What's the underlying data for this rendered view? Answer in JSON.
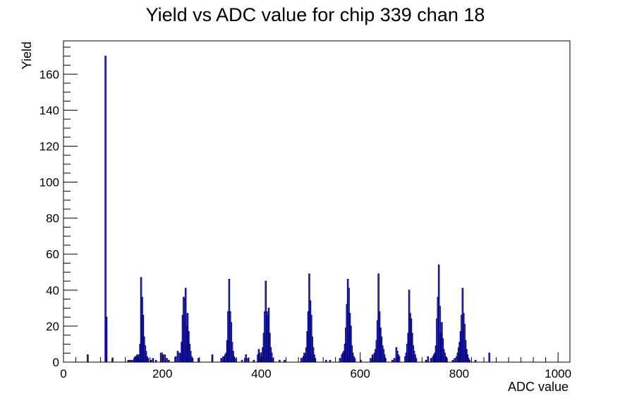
{
  "chart_data": {
    "type": "histogram",
    "title": "Yield vs ADC value for chip 339 chan 18",
    "xlabel": "ADC value",
    "ylabel": "Yield",
    "xlim": [
      0,
      1024
    ],
    "ylim": [
      0,
      178.5
    ],
    "x_ticks": [
      0,
      200,
      400,
      600,
      800,
      1000
    ],
    "y_ticks": [
      0,
      20,
      40,
      60,
      80,
      100,
      120,
      140,
      160
    ],
    "bin_width": 2,
    "line_color": "#00008b",
    "grid": false,
    "legend": "none",
    "bins": [
      [
        48,
        4
      ],
      [
        84,
        170
      ],
      [
        86,
        25
      ],
      [
        98,
        2
      ],
      [
        130,
        1
      ],
      [
        134,
        1
      ],
      [
        138,
        1
      ],
      [
        142,
        2
      ],
      [
        144,
        3
      ],
      [
        146,
        3
      ],
      [
        148,
        4
      ],
      [
        150,
        3
      ],
      [
        152,
        4
      ],
      [
        154,
        10
      ],
      [
        156,
        47
      ],
      [
        158,
        36
      ],
      [
        160,
        26
      ],
      [
        162,
        14
      ],
      [
        164,
        9
      ],
      [
        166,
        6
      ],
      [
        168,
        3
      ],
      [
        170,
        2
      ],
      [
        176,
        1
      ],
      [
        180,
        2
      ],
      [
        186,
        1
      ],
      [
        196,
        5
      ],
      [
        200,
        4
      ],
      [
        204,
        4
      ],
      [
        208,
        2
      ],
      [
        212,
        1
      ],
      [
        226,
        3
      ],
      [
        230,
        6
      ],
      [
        234,
        5
      ],
      [
        236,
        4
      ],
      [
        238,
        11
      ],
      [
        240,
        26
      ],
      [
        242,
        36
      ],
      [
        244,
        35
      ],
      [
        246,
        41
      ],
      [
        248,
        20
      ],
      [
        250,
        27
      ],
      [
        252,
        17
      ],
      [
        254,
        10
      ],
      [
        256,
        6
      ],
      [
        258,
        3
      ],
      [
        260,
        2
      ],
      [
        272,
        2
      ],
      [
        300,
        4
      ],
      [
        318,
        2
      ],
      [
        322,
        3
      ],
      [
        326,
        4
      ],
      [
        328,
        5
      ],
      [
        330,
        12
      ],
      [
        332,
        28
      ],
      [
        334,
        46
      ],
      [
        336,
        28
      ],
      [
        338,
        22
      ],
      [
        340,
        11
      ],
      [
        342,
        6
      ],
      [
        344,
        3
      ],
      [
        346,
        2
      ],
      [
        360,
        1
      ],
      [
        366,
        2
      ],
      [
        368,
        4
      ],
      [
        372,
        2
      ],
      [
        384,
        1
      ],
      [
        392,
        4
      ],
      [
        394,
        7
      ],
      [
        396,
        5
      ],
      [
        398,
        2
      ],
      [
        400,
        3
      ],
      [
        402,
        8
      ],
      [
        404,
        16
      ],
      [
        406,
        28
      ],
      [
        408,
        45
      ],
      [
        410,
        28
      ],
      [
        412,
        26
      ],
      [
        414,
        30
      ],
      [
        416,
        16
      ],
      [
        418,
        8
      ],
      [
        420,
        5
      ],
      [
        422,
        2
      ],
      [
        436,
        1
      ],
      [
        446,
        1
      ],
      [
        480,
        2
      ],
      [
        484,
        3
      ],
      [
        486,
        5
      ],
      [
        488,
        4
      ],
      [
        490,
        8
      ],
      [
        492,
        17
      ],
      [
        494,
        28
      ],
      [
        496,
        49
      ],
      [
        498,
        34
      ],
      [
        500,
        26
      ],
      [
        502,
        14
      ],
      [
        504,
        8
      ],
      [
        506,
        4
      ],
      [
        508,
        2
      ],
      [
        530,
        1
      ],
      [
        538,
        1
      ],
      [
        558,
        2
      ],
      [
        562,
        4
      ],
      [
        564,
        5
      ],
      [
        566,
        6
      ],
      [
        568,
        10
      ],
      [
        570,
        19
      ],
      [
        572,
        32
      ],
      [
        574,
        46
      ],
      [
        576,
        41
      ],
      [
        578,
        27
      ],
      [
        580,
        20
      ],
      [
        582,
        9
      ],
      [
        584,
        5
      ],
      [
        586,
        3
      ],
      [
        588,
        2
      ],
      [
        600,
        1
      ],
      [
        620,
        2
      ],
      [
        624,
        4
      ],
      [
        628,
        5
      ],
      [
        630,
        7
      ],
      [
        632,
        12
      ],
      [
        634,
        23
      ],
      [
        636,
        49
      ],
      [
        638,
        28
      ],
      [
        640,
        19
      ],
      [
        642,
        14
      ],
      [
        644,
        9
      ],
      [
        646,
        7
      ],
      [
        648,
        4
      ],
      [
        650,
        2
      ],
      [
        664,
        1
      ],
      [
        668,
        2
      ],
      [
        672,
        8
      ],
      [
        674,
        6
      ],
      [
        676,
        4
      ],
      [
        678,
        3
      ],
      [
        690,
        3
      ],
      [
        692,
        5
      ],
      [
        694,
        10
      ],
      [
        696,
        16
      ],
      [
        698,
        40
      ],
      [
        700,
        27
      ],
      [
        702,
        24
      ],
      [
        704,
        16
      ],
      [
        706,
        9
      ],
      [
        708,
        6
      ],
      [
        710,
        4
      ],
      [
        712,
        2
      ],
      [
        732,
        1
      ],
      [
        736,
        3
      ],
      [
        742,
        2
      ],
      [
        746,
        3
      ],
      [
        748,
        4
      ],
      [
        750,
        5
      ],
      [
        752,
        9
      ],
      [
        754,
        24
      ],
      [
        756,
        36
      ],
      [
        758,
        54
      ],
      [
        760,
        31
      ],
      [
        762,
        16
      ],
      [
        764,
        22
      ],
      [
        766,
        13
      ],
      [
        768,
        7
      ],
      [
        770,
        5
      ],
      [
        772,
        3
      ],
      [
        774,
        2
      ],
      [
        786,
        1
      ],
      [
        790,
        2
      ],
      [
        794,
        3
      ],
      [
        796,
        5
      ],
      [
        798,
        8
      ],
      [
        800,
        11
      ],
      [
        802,
        17
      ],
      [
        804,
        26
      ],
      [
        806,
        41
      ],
      [
        808,
        27
      ],
      [
        810,
        21
      ],
      [
        812,
        12
      ],
      [
        814,
        7
      ],
      [
        816,
        4
      ],
      [
        818,
        2
      ],
      [
        820,
        1
      ],
      [
        832,
        1
      ],
      [
        860,
        5
      ]
    ]
  }
}
